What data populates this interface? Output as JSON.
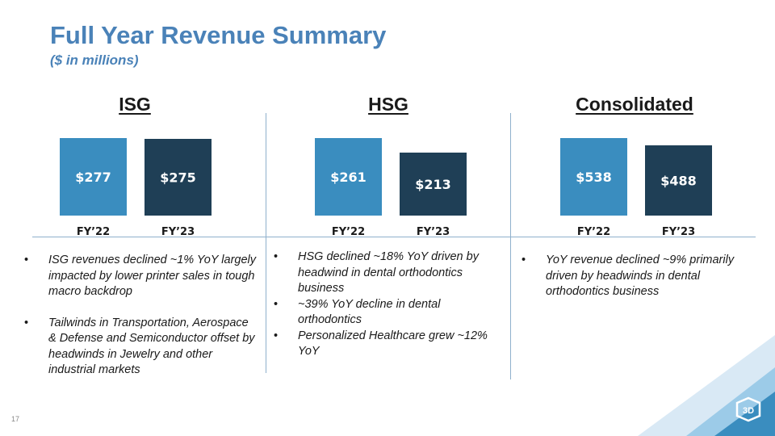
{
  "title": "Full Year Revenue Summary",
  "subtitle": "($ in millions)",
  "page_number": "17",
  "colors": {
    "accent": "#4a82b8",
    "bar_fy22": "#3a8dbf",
    "bar_fy23": "#1f3f56",
    "divider": "#8fb0cc"
  },
  "chart_data": [
    {
      "type": "bar",
      "title": "ISG",
      "categories": [
        "FY’22",
        "FY’23"
      ],
      "values": [
        277,
        275
      ],
      "labels": [
        "$277",
        "$275"
      ],
      "ylabel": "$ in millions"
    },
    {
      "type": "bar",
      "title": "HSG",
      "categories": [
        "FY’22",
        "FY’23"
      ],
      "values": [
        261,
        213
      ],
      "labels": [
        "$261",
        "$213"
      ],
      "ylabel": "$ in millions"
    },
    {
      "type": "bar",
      "title": "Consolidated",
      "categories": [
        "FY’22",
        "FY’23"
      ],
      "values": [
        538,
        488
      ],
      "labels": [
        "$538",
        "$488"
      ],
      "ylabel": "$ in millions"
    }
  ],
  "commentary": {
    "isg": [
      "ISG revenues declined ~1% YoY largely impacted by lower printer sales in tough macro backdrop",
      "Tailwinds in Transportation, Aerospace & Defense and Semiconductor offset by headwinds in Jewelry and other industrial markets"
    ],
    "hsg": [
      "HSG declined ~18% YoY driven by headwind in dental orthodontics business",
      "~39% YoY decline in dental orthodontics",
      "Personalized Healthcare grew ~12% YoY"
    ],
    "consolidated": [
      "YoY revenue declined ~9% primarily driven by headwinds in dental orthodontics business"
    ]
  },
  "logo": {
    "text": "3D",
    "icon": "3d-systems-logo-icon"
  }
}
